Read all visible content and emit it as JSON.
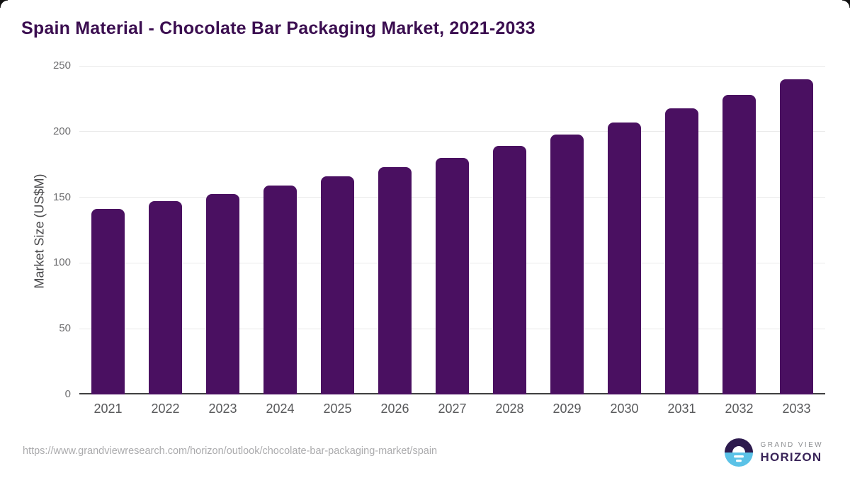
{
  "title": "Spain Material - Chocolate Bar Packaging Market, 2021-2033",
  "source_url": "https://www.grandviewresearch.com/horizon/outlook/chocolate-bar-packaging-market/spain",
  "logo": {
    "line1": "GRAND VIEW",
    "line2": "HORIZON"
  },
  "colors": {
    "bar": "#4A1061",
    "title": "#3B0E50",
    "axis_line": "#3F3F41",
    "gridline": "#E9E9E9",
    "tick_text": "#6F6F71",
    "x_tick_text": "#58595B",
    "source_text": "#ABABAD",
    "logo_navy": "#2D1A4E",
    "logo_blue": "#5BC2E7"
  },
  "chart_data": {
    "type": "bar",
    "title": "Spain Material - Chocolate Bar Packaging Market, 2021-2033",
    "categories": [
      "2021",
      "2022",
      "2023",
      "2024",
      "2025",
      "2026",
      "2027",
      "2028",
      "2029",
      "2030",
      "2031",
      "2032",
      "2033"
    ],
    "values": [
      141.4,
      146.9,
      152.3,
      158.7,
      166.0,
      172.9,
      180.1,
      189.0,
      197.5,
      206.9,
      217.5,
      228.1,
      239.6
    ],
    "xlabel": "",
    "ylabel": "Market Size (US$M)",
    "ylim": [
      0,
      250
    ],
    "yticks": [
      0,
      50,
      100,
      150,
      200,
      250
    ],
    "grid": true,
    "legend": false,
    "bar_color": "#4A1061"
  }
}
